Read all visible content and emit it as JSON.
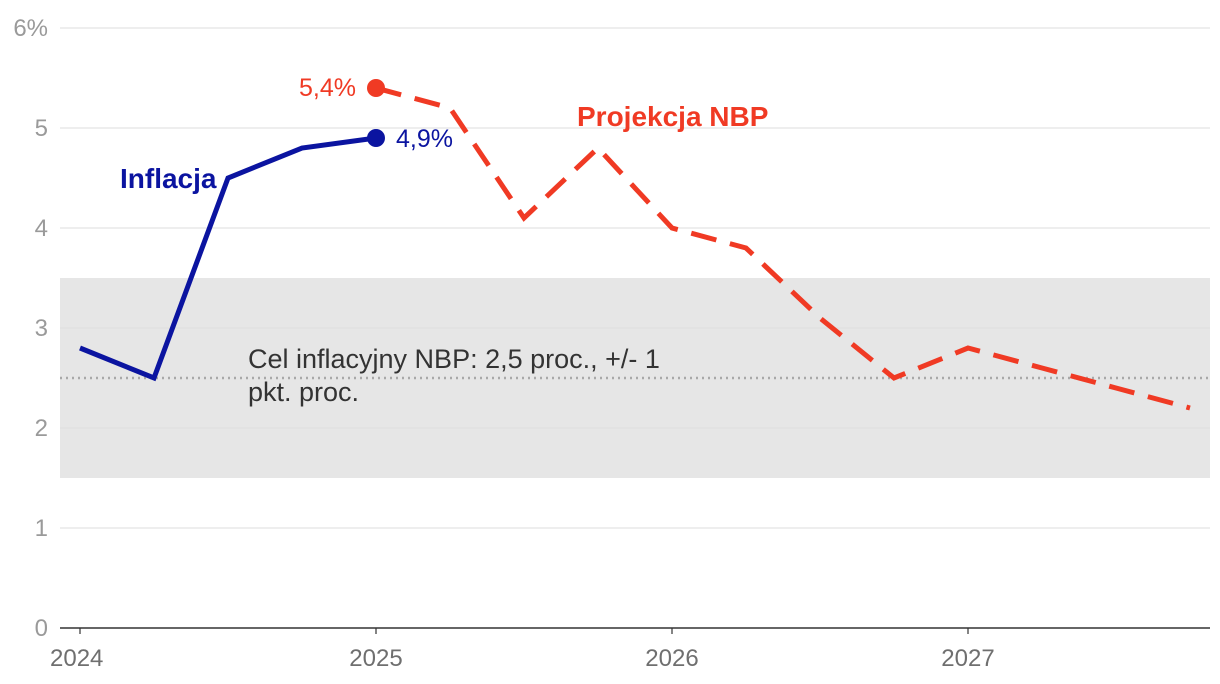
{
  "chart_data": {
    "type": "line",
    "ylim": [
      0,
      6
    ],
    "y_ticks": [
      {
        "value": 0,
        "label": "0"
      },
      {
        "value": 1,
        "label": "1"
      },
      {
        "value": 2,
        "label": "2"
      },
      {
        "value": 3,
        "label": "3"
      },
      {
        "value": 4,
        "label": "4"
      },
      {
        "value": 5,
        "label": "5"
      },
      {
        "value": 6,
        "label": "6%"
      }
    ],
    "xlim": [
      2024.0,
      2027.9
    ],
    "x_ticks": [
      {
        "value": 2024,
        "label": "2024"
      },
      {
        "value": 2025,
        "label": "2025"
      },
      {
        "value": 2026,
        "label": "2026"
      },
      {
        "value": 2027,
        "label": "2027"
      }
    ],
    "target_band": {
      "low": 1.5,
      "high": 3.5,
      "center": 2.5
    },
    "target_label": [
      "Cel inflacyjny NBP: 2,5 proc., +/- 1",
      "pkt. proc."
    ],
    "series": [
      {
        "name": "Inflacja",
        "color": "#0b14a0",
        "dash": false,
        "x": [
          2024.0,
          2024.25,
          2024.5,
          2024.75,
          2025.0
        ],
        "values": [
          2.8,
          2.5,
          4.5,
          4.8,
          4.9
        ],
        "end_label": "4,9%"
      },
      {
        "name": "Projekcja NBP",
        "color": "#f03a24",
        "dash": true,
        "x": [
          2025.0,
          2025.25,
          2025.5,
          2025.75,
          2026.0,
          2026.25,
          2026.5,
          2026.75,
          2027.0,
          2027.25,
          2027.5,
          2027.75
        ],
        "values": [
          5.4,
          5.2,
          4.1,
          4.8,
          4.0,
          3.8,
          3.1,
          2.5,
          2.8,
          2.6,
          2.4,
          2.2
        ],
        "start_label": "5,4%"
      }
    ]
  }
}
